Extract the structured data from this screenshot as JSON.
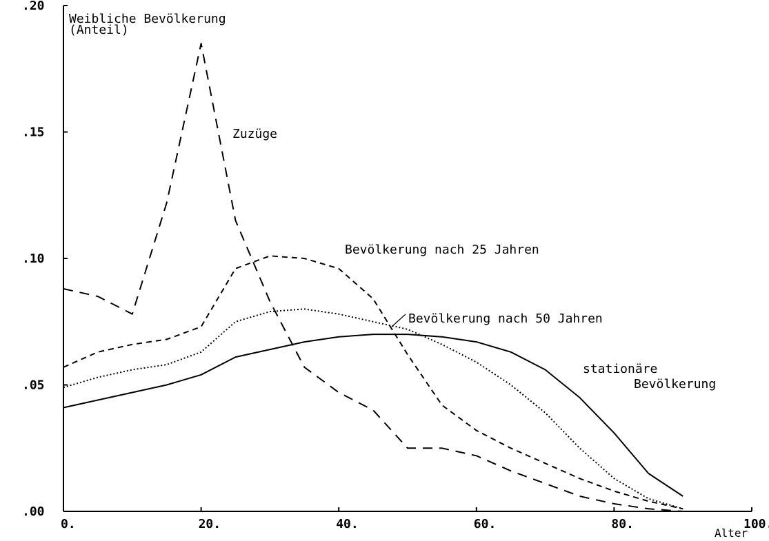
{
  "chart_data": {
    "type": "line",
    "title": "",
    "ylabel_lines": [
      "Weibliche Bevölkerung",
      "(Anteil)"
    ],
    "xlabel": "Alter",
    "xlim": [
      0,
      100
    ],
    "ylim": [
      0,
      0.2
    ],
    "x_ticks": [
      0,
      20,
      40,
      60,
      80,
      100
    ],
    "x_tick_labels": [
      "0.",
      "20.",
      "40.",
      "60.",
      "80.",
      "100."
    ],
    "y_ticks": [
      0,
      0.05,
      0.1,
      0.15,
      0.2
    ],
    "y_tick_labels": [
      ".00",
      ".05",
      ".10",
      ".15",
      ".20"
    ],
    "grid": false,
    "series": [
      {
        "name": "Zuzüge",
        "style": "long-dash",
        "x": [
          0,
          5,
          10,
          15,
          20,
          25,
          30,
          35,
          40,
          45,
          50,
          55,
          60,
          65,
          70,
          75,
          80,
          85,
          90
        ],
        "y": [
          0.088,
          0.085,
          0.078,
          0.122,
          0.185,
          0.115,
          0.083,
          0.057,
          0.047,
          0.04,
          0.025,
          0.025,
          0.022,
          0.016,
          0.011,
          0.006,
          0.003,
          0.001,
          0.0
        ]
      },
      {
        "name": "Bevölkerung nach 25 Jahren",
        "style": "short-dash",
        "x": [
          0,
          5,
          10,
          15,
          20,
          25,
          30,
          35,
          40,
          45,
          50,
          55,
          60,
          65,
          70,
          75,
          80,
          85,
          90
        ],
        "y": [
          0.057,
          0.063,
          0.066,
          0.068,
          0.073,
          0.096,
          0.101,
          0.1,
          0.096,
          0.084,
          0.062,
          0.042,
          0.032,
          0.025,
          0.019,
          0.013,
          0.008,
          0.004,
          0.001
        ]
      },
      {
        "name": "Bevölkerung nach 50 Jahren",
        "style": "dotted",
        "x": [
          0,
          5,
          10,
          15,
          20,
          25,
          30,
          35,
          40,
          45,
          50,
          55,
          60,
          65,
          70,
          75,
          80,
          85,
          90
        ],
        "y": [
          0.049,
          0.053,
          0.056,
          0.058,
          0.063,
          0.075,
          0.079,
          0.08,
          0.078,
          0.075,
          0.072,
          0.066,
          0.059,
          0.05,
          0.039,
          0.025,
          0.013,
          0.005,
          0.001
        ]
      },
      {
        "name": "stationäre Bevölkerung",
        "style": "solid",
        "x": [
          0,
          5,
          10,
          15,
          20,
          25,
          30,
          35,
          40,
          45,
          50,
          55,
          60,
          65,
          70,
          75,
          80,
          85,
          90
        ],
        "y": [
          0.041,
          0.044,
          0.047,
          0.05,
          0.054,
          0.061,
          0.064,
          0.067,
          0.069,
          0.07,
          0.07,
          0.069,
          0.067,
          0.063,
          0.056,
          0.045,
          0.031,
          0.015,
          0.006
        ]
      }
    ],
    "annotations": [
      {
        "text": "Zuzüge",
        "series": 0
      },
      {
        "text": "Bevölkerung nach 25 Jahren",
        "series": 1
      },
      {
        "text": "Bevölkerung nach 50 Jahren",
        "series": 2
      },
      {
        "lines": [
          "stationäre",
          "Bevölkerung"
        ],
        "series": 3
      }
    ]
  }
}
